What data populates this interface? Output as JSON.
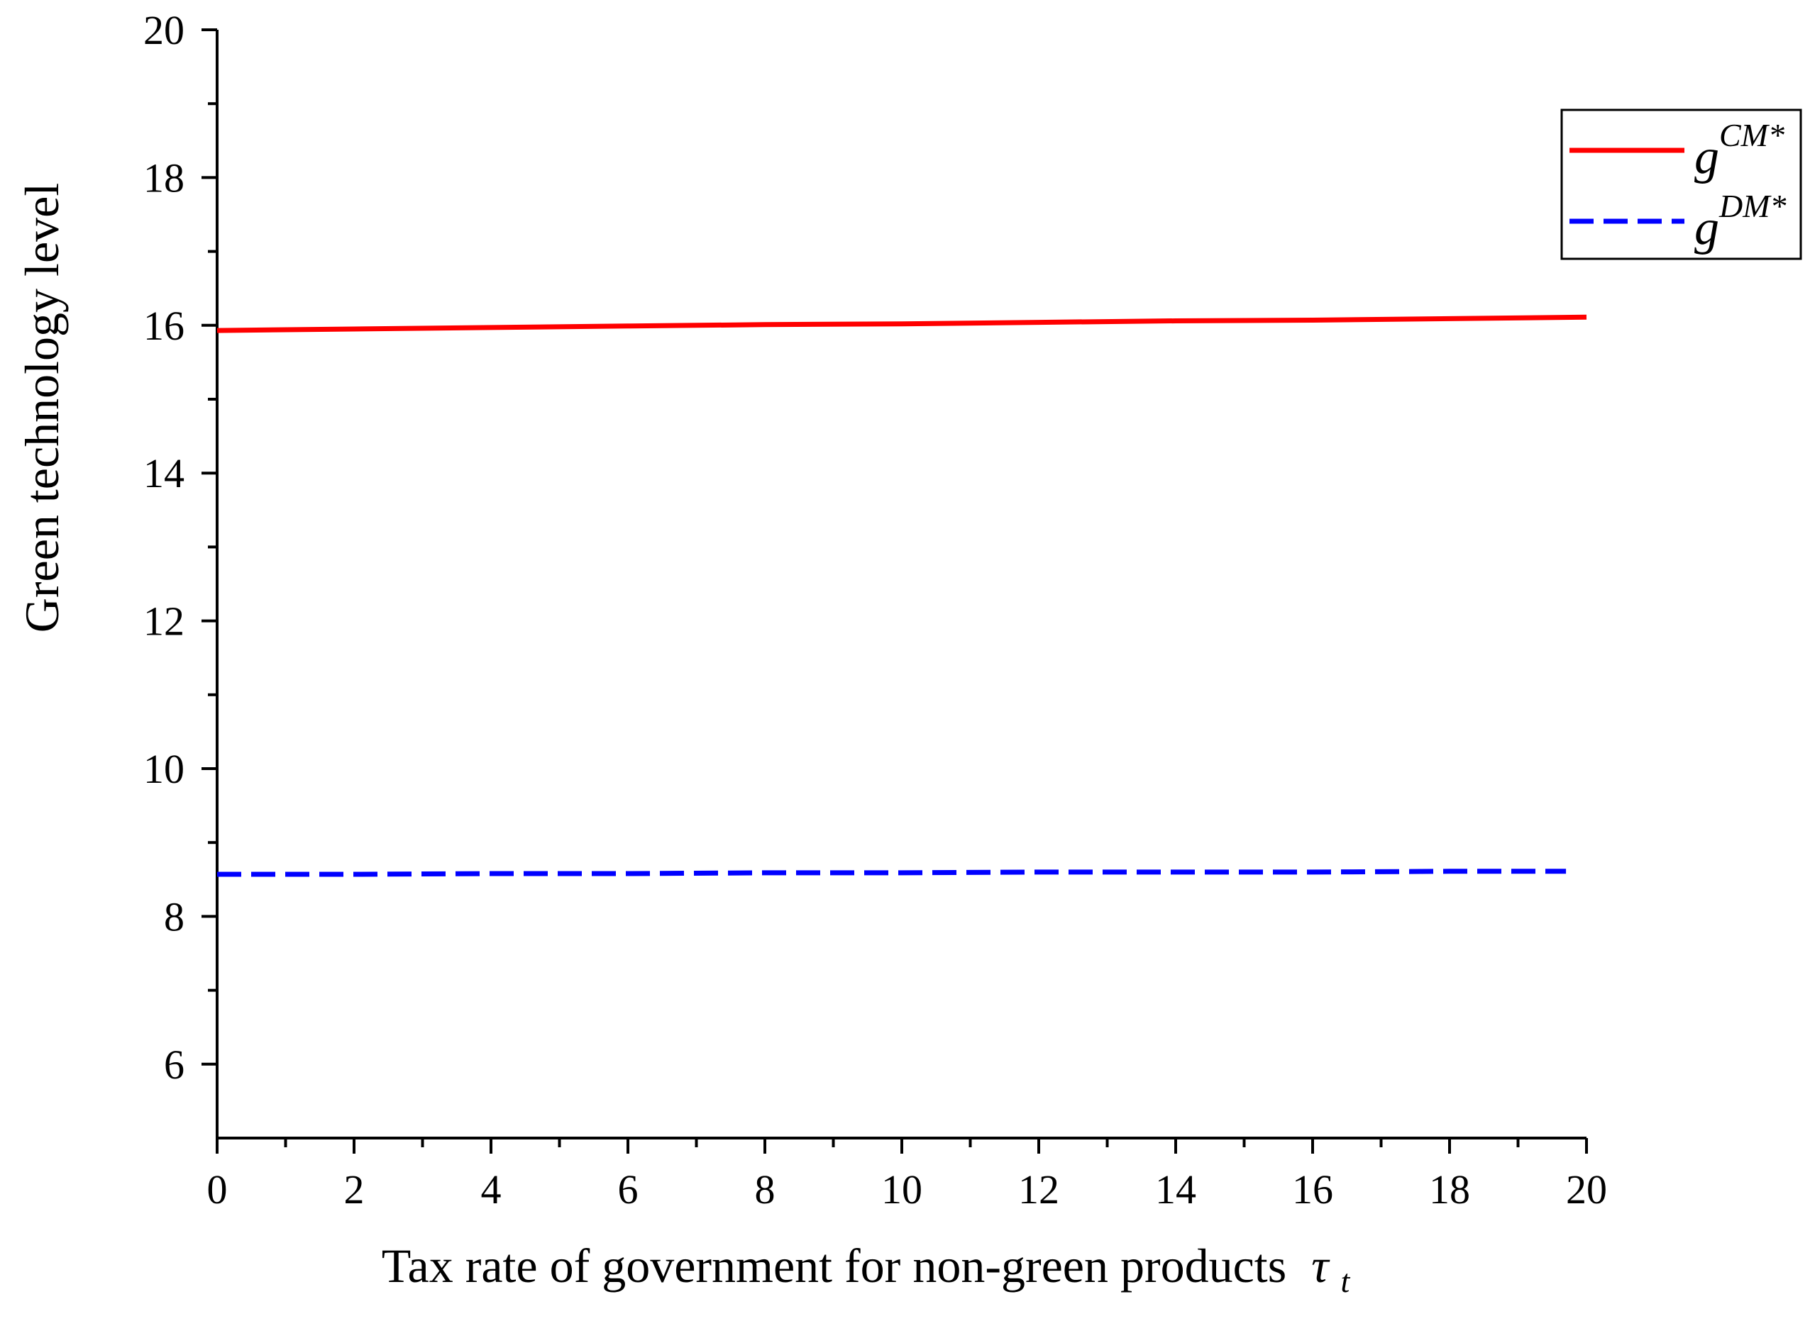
{
  "chart_data": {
    "type": "line",
    "title": "",
    "xlabel": "Tax rate of government for non-green products",
    "xlabel_symbol": "τ",
    "xlabel_subscript": "t",
    "ylabel": "Green technology level",
    "xlim": [
      0,
      20
    ],
    "ylim": [
      5,
      20
    ],
    "x_ticks": [
      "0",
      "2",
      "4",
      "6",
      "8",
      "10",
      "12",
      "14",
      "16",
      "18",
      "20"
    ],
    "y_ticks": [
      "6",
      "8",
      "10",
      "12",
      "14",
      "16",
      "18",
      "20"
    ],
    "grid": false,
    "legend_position": "top-right",
    "series": [
      {
        "name": "gCM*",
        "legend_base": "g",
        "legend_sup": "CM*",
        "color": "#ff0000",
        "dash": "solid",
        "x": [
          0,
          2,
          4,
          6,
          8,
          10,
          12,
          14,
          16,
          18,
          20
        ],
        "y": [
          15.93,
          15.95,
          15.97,
          15.99,
          16.01,
          16.02,
          16.04,
          16.06,
          16.07,
          16.09,
          16.11
        ]
      },
      {
        "name": "gDM*",
        "legend_base": "g",
        "legend_sup": "DM*",
        "color": "#0000ff",
        "dash": "dashed",
        "x": [
          0,
          2,
          4,
          6,
          8,
          10,
          12,
          14,
          16,
          18,
          19.7
        ],
        "y": [
          8.57,
          8.57,
          8.58,
          8.58,
          8.59,
          8.59,
          8.6,
          8.6,
          8.6,
          8.61,
          8.61
        ]
      }
    ]
  }
}
